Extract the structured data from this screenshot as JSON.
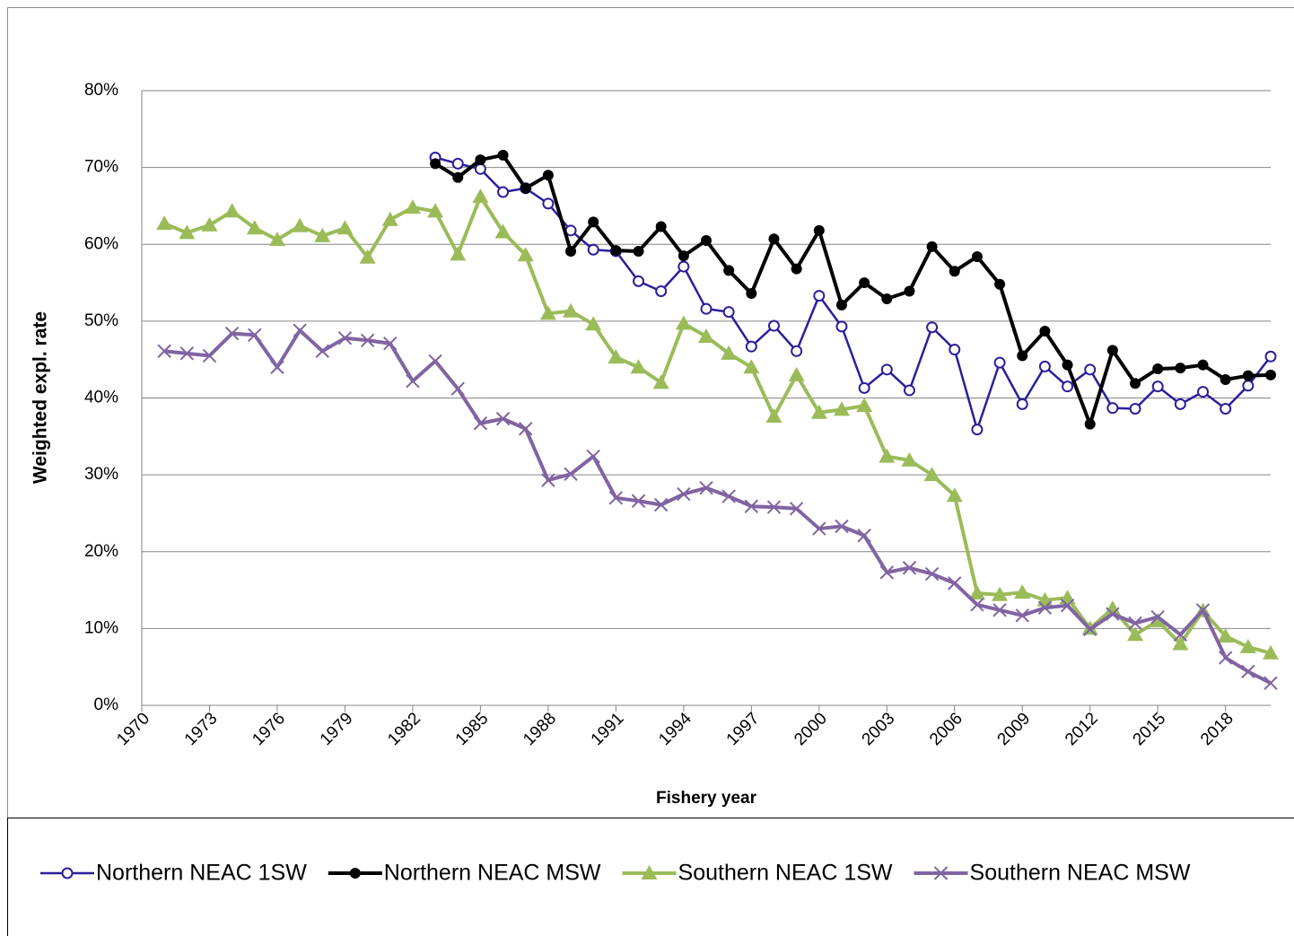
{
  "chart_data": {
    "type": "line",
    "y_label": "Weighted expl. rate",
    "x_label": "Fishery year",
    "x": [
      1971,
      1972,
      1973,
      1974,
      1975,
      1976,
      1977,
      1978,
      1979,
      1980,
      1981,
      1982,
      1983,
      1984,
      1985,
      1986,
      1987,
      1988,
      1989,
      1990,
      1991,
      1992,
      1993,
      1994,
      1995,
      1996,
      1997,
      1998,
      1999,
      2000,
      2001,
      2002,
      2003,
      2004,
      2005,
      2006,
      2007,
      2008,
      2009,
      2010,
      2011,
      2012,
      2013,
      2014,
      2015,
      2016,
      2017,
      2018,
      2019,
      2020
    ],
    "series": [
      {
        "name": "Northern NEAC 1SW",
        "color": "#2a1f9c",
        "marker": "circle-open",
        "values": [
          null,
          null,
          null,
          null,
          null,
          null,
          null,
          null,
          null,
          null,
          null,
          null,
          71.3,
          70.5,
          69.8,
          66.8,
          67.3,
          65.3,
          61.8,
          59.3,
          59.1,
          55.2,
          53.9,
          57.1,
          51.6,
          51.2,
          46.7,
          49.4,
          46.1,
          53.3,
          49.3,
          41.3,
          43.7,
          41.0,
          49.2,
          46.3,
          35.9,
          44.6,
          39.2,
          44.1,
          41.5,
          43.7,
          38.7,
          38.6,
          41.5,
          39.2,
          40.8,
          38.6,
          41.6,
          45.4
        ]
      },
      {
        "name": "Northern NEAC MSW",
        "color": "#000000",
        "marker": "circle",
        "values": [
          null,
          null,
          null,
          null,
          null,
          null,
          null,
          null,
          null,
          null,
          null,
          null,
          70.5,
          68.7,
          71.0,
          71.6,
          67.3,
          69.0,
          59.1,
          62.9,
          59.2,
          59.1,
          62.3,
          58.5,
          60.5,
          56.6,
          53.6,
          60.7,
          56.8,
          61.8,
          52.1,
          55.0,
          52.9,
          53.9,
          59.7,
          56.5,
          58.4,
          54.8,
          45.5,
          48.7,
          44.3,
          36.6,
          46.2,
          41.9,
          43.8,
          43.9,
          44.3,
          42.4,
          42.9,
          43.0
        ]
      },
      {
        "name": "Southern NEAC 1SW",
        "color": "#9bbb59",
        "marker": "triangle",
        "values": [
          62.7,
          61.5,
          62.5,
          64.3,
          62.1,
          60.6,
          62.4,
          61.1,
          62.1,
          58.3,
          63.2,
          64.8,
          64.3,
          58.7,
          66.2,
          61.6,
          58.6,
          51.0,
          51.3,
          49.6,
          45.3,
          44.0,
          42.0,
          49.7,
          48.0,
          45.8,
          44.0,
          37.6,
          43.0,
          38.1,
          38.5,
          39.0,
          32.4,
          31.9,
          30.0,
          27.3,
          14.6,
          14.4,
          14.7,
          13.7,
          14.0,
          10.0,
          12.6,
          9.2,
          11.0,
          8.0,
          12.3,
          9.0,
          7.6,
          6.8
        ]
      },
      {
        "name": "Southern NEAC MSW",
        "color": "#8064a2",
        "marker": "x",
        "values": [
          46.1,
          45.8,
          45.5,
          48.4,
          48.2,
          44.0,
          48.8,
          46.1,
          47.8,
          47.5,
          47.1,
          42.2,
          44.8,
          41.2,
          36.7,
          37.3,
          36.0,
          29.3,
          30.1,
          32.4,
          27.0,
          26.6,
          26.1,
          27.5,
          28.3,
          27.2,
          25.9,
          25.8,
          25.6,
          23.0,
          23.3,
          22.1,
          17.3,
          17.9,
          17.1,
          15.9,
          13.1,
          12.4,
          11.7,
          12.7,
          13.0,
          9.9,
          11.9,
          10.7,
          11.5,
          9.2,
          12.4,
          6.2,
          4.4,
          2.9
        ]
      }
    ],
    "xlim": [
      1970,
      2020
    ],
    "xticks": [
      1970,
      1973,
      1976,
      1979,
      1982,
      1985,
      1988,
      1991,
      1994,
      1997,
      2000,
      2003,
      2006,
      2009,
      2012,
      2015,
      2018
    ],
    "ylim": [
      0,
      80
    ],
    "yticks": [
      {
        "value": 0,
        "label": "0%"
      },
      {
        "value": 10,
        "label": "10%"
      },
      {
        "value": 20,
        "label": "20%"
      },
      {
        "value": 30,
        "label": "30%"
      },
      {
        "value": 40,
        "label": "40%"
      },
      {
        "value": 50,
        "label": "50%"
      },
      {
        "value": 60,
        "label": "60%"
      },
      {
        "value": 70,
        "label": "70%"
      },
      {
        "value": 80,
        "label": "80%"
      }
    ],
    "grid": true,
    "legend": "bottom"
  }
}
